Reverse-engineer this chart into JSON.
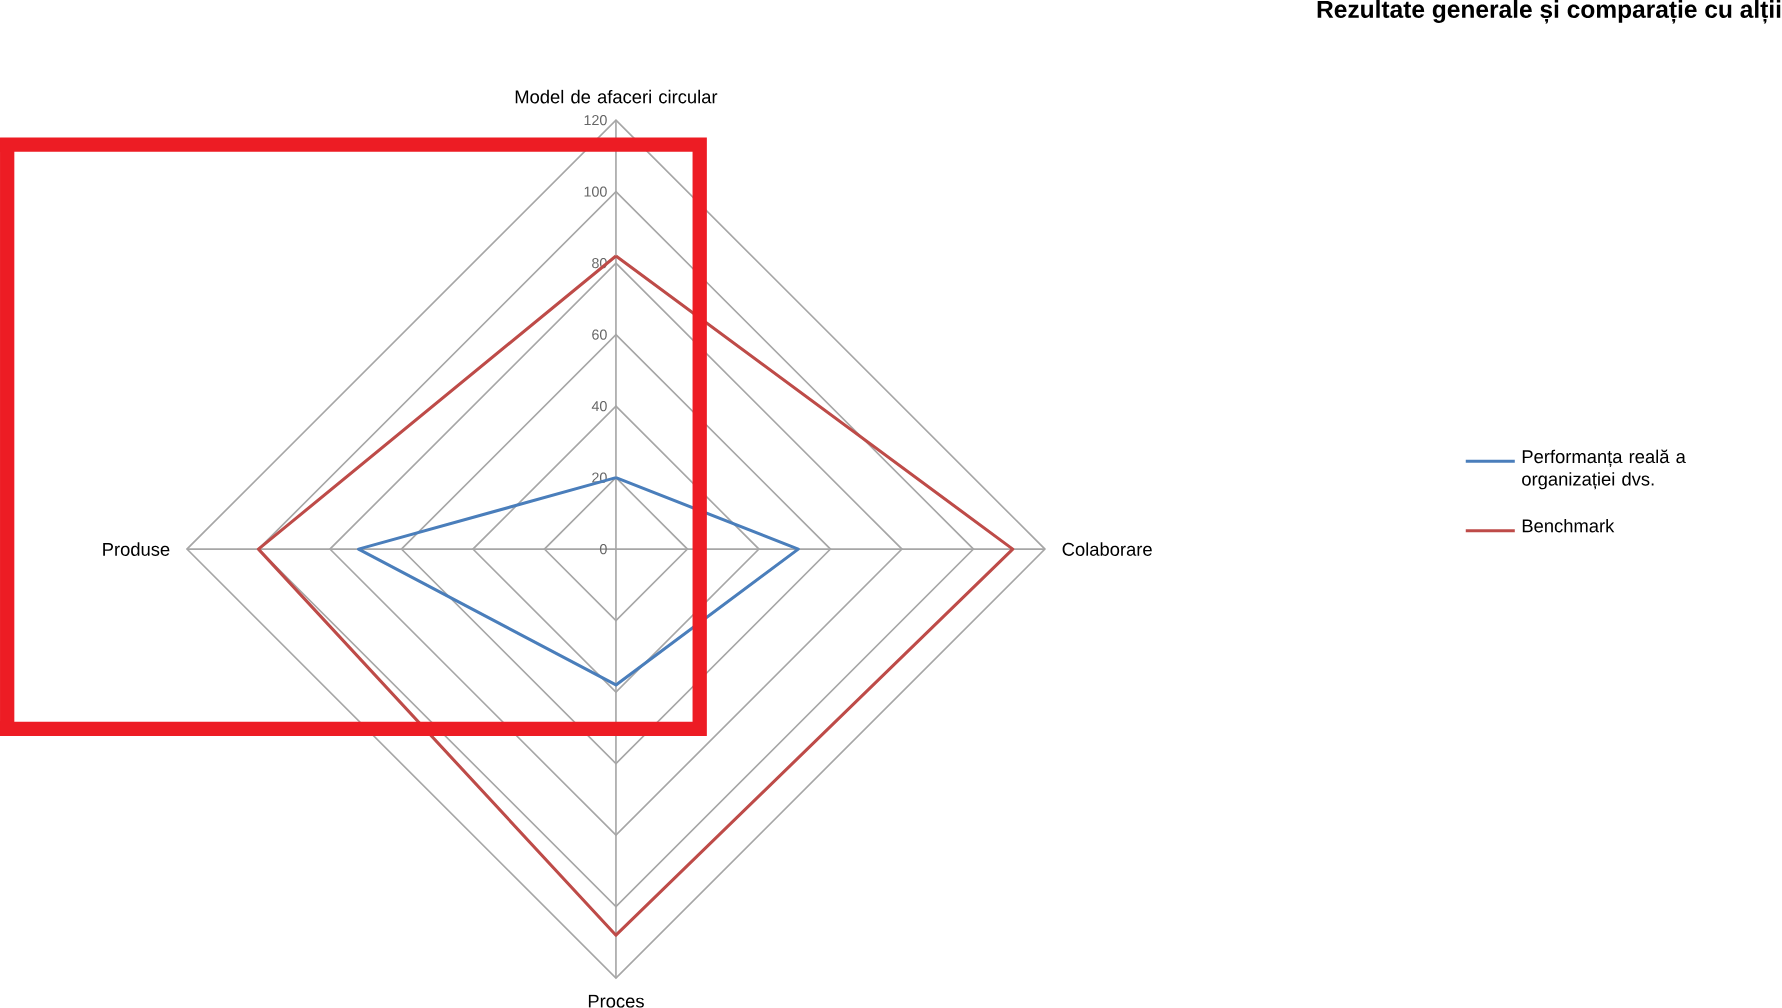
{
  "chart_data": {
    "type": "radar",
    "title": "Rezultate generale și comparație cu alții",
    "categories": [
      "Model de afaceri circular",
      "Colaborare",
      "Proces",
      "Produse"
    ],
    "series": [
      {
        "name": "Performanța reală a organizației dvs.",
        "color": "#4a7ebb",
        "values": [
          20,
          51,
          38,
          72
        ]
      },
      {
        "name": "Benchmark",
        "color": "#be4b48",
        "values": [
          82,
          111,
          108,
          100
        ]
      }
    ],
    "ylim": [
      0,
      120
    ],
    "yticks": [
      0,
      20,
      40,
      60,
      80,
      100,
      120
    ],
    "grid": true,
    "legend": "right"
  }
}
